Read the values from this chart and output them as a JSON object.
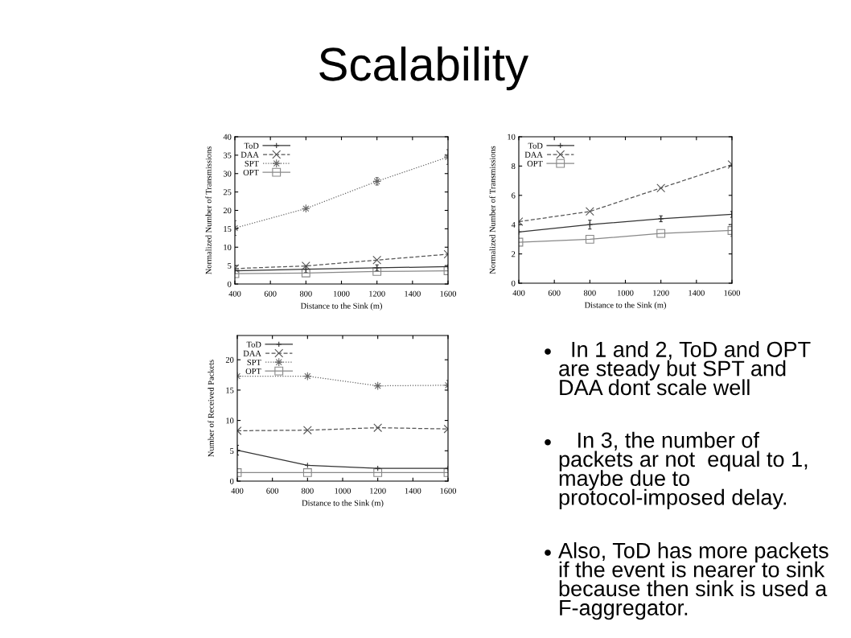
{
  "chart_data": [
    {
      "type": "other",
      "title": "Scalability"
    },
    {
      "type": "line",
      "x": [
        400,
        800,
        1200,
        1600
      ],
      "xlabel": "Distance to the Sink (m)",
      "ylabel": "Normalized Number of Transmissions",
      "xlim": [
        400,
        1600
      ],
      "xticks": [
        400,
        600,
        800,
        1000,
        1200,
        1400,
        1600
      ],
      "ylim": [
        0,
        40
      ],
      "yticks": [
        0,
        5,
        10,
        15,
        20,
        25,
        30,
        35,
        40
      ],
      "legend": "top left",
      "series": [
        {
          "name": "ToD",
          "color": "#333333",
          "line_style": "solid",
          "marker": "plus",
          "values": [
            3.6,
            4.0,
            4.4,
            4.7
          ],
          "errors": [
            null,
            0.9,
            0.8,
            null
          ]
        },
        {
          "name": "DAA",
          "color": "#555555",
          "line_style": "dashed",
          "marker": "cross",
          "values": [
            4.2,
            4.9,
            6.5,
            8.1
          ]
        },
        {
          "name": "SPT",
          "color": "#666666",
          "line_style": "dotted",
          "marker": "star",
          "values": [
            15.2,
            20.5,
            27.9,
            34.5
          ],
          "errors": [
            2,
            null,
            1,
            2
          ]
        },
        {
          "name": "OPT",
          "color": "#888888",
          "line_style": "solid",
          "marker": "square",
          "values": [
            2.8,
            3.0,
            3.4,
            3.6
          ]
        }
      ]
    },
    {
      "type": "line",
      "x": [
        400,
        800,
        1200,
        1600
      ],
      "xlabel": "Distance to the Sink (m)",
      "ylabel": "Normalized Number of Transmissions",
      "xlim": [
        400,
        1600
      ],
      "xticks": [
        400,
        600,
        800,
        1000,
        1200,
        1400,
        1600
      ],
      "ylim": [
        0,
        10
      ],
      "yticks": [
        0,
        2,
        4,
        6,
        8,
        10
      ],
      "legend": "top left",
      "series": [
        {
          "name": "ToD",
          "color": "#333333",
          "line_style": "solid",
          "marker": "plus",
          "values": [
            3.5,
            4.0,
            4.4,
            4.7
          ],
          "errors": [
            null,
            0.3,
            0.2,
            0.2
          ]
        },
        {
          "name": "DAA",
          "color": "#555555",
          "line_style": "dashed",
          "marker": "cross",
          "values": [
            4.2,
            4.9,
            6.5,
            8.1
          ]
        },
        {
          "name": "OPT",
          "color": "#888888",
          "line_style": "solid",
          "marker": "square",
          "values": [
            2.8,
            3.0,
            3.4,
            3.6
          ],
          "errors": [
            null,
            null,
            null,
            0.4
          ]
        }
      ]
    },
    {
      "type": "line",
      "x": [
        400,
        800,
        1200,
        1600
      ],
      "xlabel": "Distance to the Sink (m)",
      "ylabel": "Number of Received Packets",
      "xlim": [
        400,
        1600
      ],
      "xticks": [
        400,
        600,
        800,
        1000,
        1200,
        1400,
        1600
      ],
      "ylim": [
        0,
        24
      ],
      "yticks": [
        0,
        5,
        10,
        15,
        20
      ],
      "legend": "top left",
      "series": [
        {
          "name": "ToD",
          "color": "#333333",
          "line_style": "solid",
          "marker": "plus",
          "values": [
            5.1,
            2.6,
            2.1,
            2.1
          ],
          "errors": [
            0.8,
            null,
            null,
            null
          ]
        },
        {
          "name": "DAA",
          "color": "#555555",
          "line_style": "dashed",
          "marker": "cross",
          "values": [
            8.3,
            8.4,
            8.8,
            8.6
          ]
        },
        {
          "name": "SPT",
          "color": "#666666",
          "line_style": "dotted",
          "marker": "star",
          "values": [
            17.3,
            17.3,
            15.7,
            15.8
          ],
          "errors": [
            null,
            null,
            null,
            0.8
          ]
        },
        {
          "name": "OPT",
          "color": "#888888",
          "line_style": "solid",
          "marker": "square",
          "values": [
            1.4,
            1.4,
            1.4,
            1.4
          ]
        }
      ]
    },
    {
      "type": "other",
      "annotations": [
        "  In 1 and 2, ToD and OPT are steady but SPT and DAA dont scale well",
        "   In 3, the number of packets ar not  equal to 1, maybe due to protocol-imposed delay.",
        "Also, ToD has more packets if the event is nearer to sink because then sink is used a F-aggregator."
      ]
    }
  ]
}
